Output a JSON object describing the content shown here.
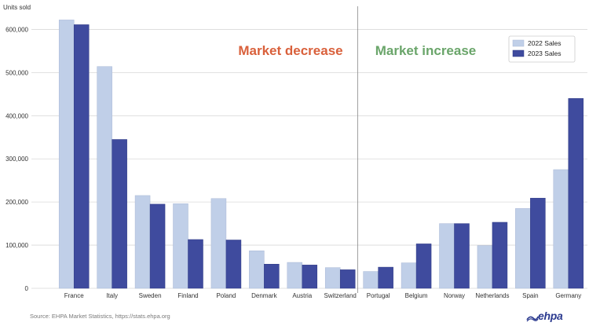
{
  "chart_data": {
    "type": "bar",
    "ylabel": "Units sold",
    "categories": [
      "France",
      "Italy",
      "Sweden",
      "Finland",
      "Poland",
      "Denmark",
      "Austria",
      "Switzerland",
      "Portugal",
      "Belgium",
      "Norway",
      "Netherlands",
      "Spain",
      "Germany"
    ],
    "series": [
      {
        "name": "2022 Sales",
        "color": "#c0cfe8",
        "values": [
          622000,
          514000,
          215000,
          196000,
          208000,
          87000,
          60000,
          48000,
          39000,
          59000,
          150000,
          99000,
          185000,
          275000
        ]
      },
      {
        "name": "2023 Sales",
        "color": "#3f4b9e",
        "values": [
          611000,
          345000,
          195000,
          113000,
          112000,
          56000,
          54000,
          43000,
          49000,
          103000,
          150000,
          153000,
          209000,
          440000
        ]
      }
    ],
    "ylim": [
      0,
      650000
    ],
    "yticks": [
      0,
      100000,
      200000,
      300000,
      400000,
      500000,
      600000
    ],
    "ytick_labels": [
      "0",
      "100,000",
      "200,000",
      "300,000",
      "400,000",
      "500,000",
      "600,000"
    ],
    "grid": true,
    "legend_position": "top-right",
    "annotations": [
      {
        "text": "Market decrease",
        "color": "#d9603b"
      },
      {
        "text": "Market increase",
        "color": "#6aa56a"
      }
    ],
    "divider_after_category": "Switzerland"
  },
  "footer": {
    "source": "Source: EHPA Market Statistics, https://stats.ehpa.org",
    "logo": "ehpa"
  }
}
